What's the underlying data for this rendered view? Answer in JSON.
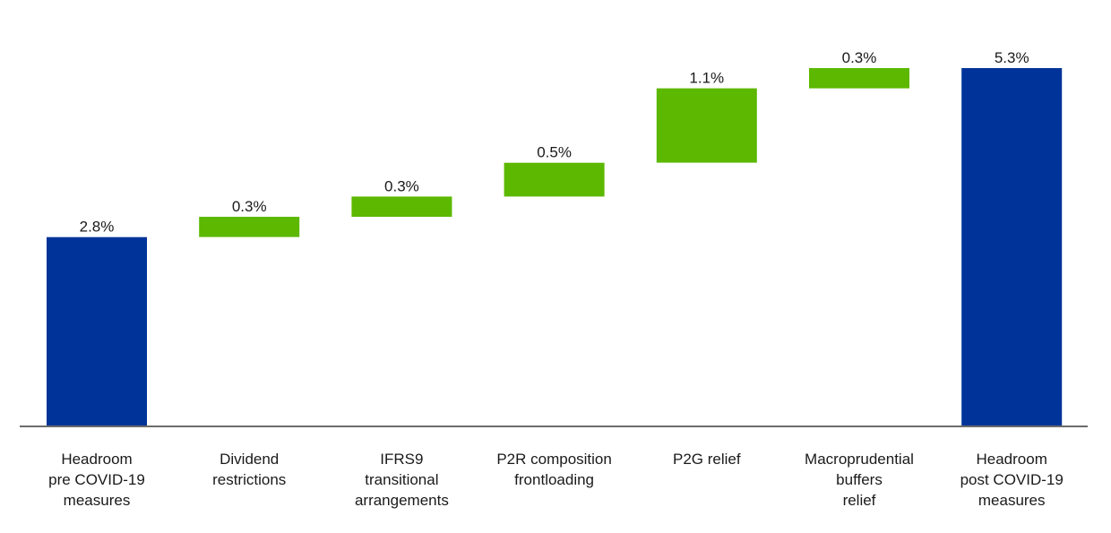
{
  "chart_data": {
    "type": "bar",
    "subtype": "waterfall",
    "categories": [
      [
        "Headroom",
        "pre COVID-19",
        "measures"
      ],
      [
        "Dividend",
        "restrictions"
      ],
      [
        "IFRS9",
        "transitional",
        "arrangements"
      ],
      [
        "P2R composition",
        "frontloading"
      ],
      [
        "P2G relief"
      ],
      [
        "Macroprudential",
        "buffers",
        "relief"
      ],
      [
        "Headroom",
        "post COVID-19",
        "measures"
      ]
    ],
    "values": [
      2.8,
      0.3,
      0.3,
      0.5,
      1.1,
      0.3,
      5.3
    ],
    "bar_roles": [
      "total",
      "increment",
      "increment",
      "increment",
      "increment",
      "increment",
      "total"
    ],
    "data_labels": [
      "2.8%",
      "0.3%",
      "0.3%",
      "0.5%",
      "1.1%",
      "0.3%",
      "5.3%"
    ],
    "ylim": [
      0,
      5.3
    ],
    "grid": false,
    "legend": "none",
    "colors": {
      "total": "#003399",
      "increment": "#5cb800",
      "axis": "#6b6b6b",
      "text": "#1a1a1a"
    }
  }
}
